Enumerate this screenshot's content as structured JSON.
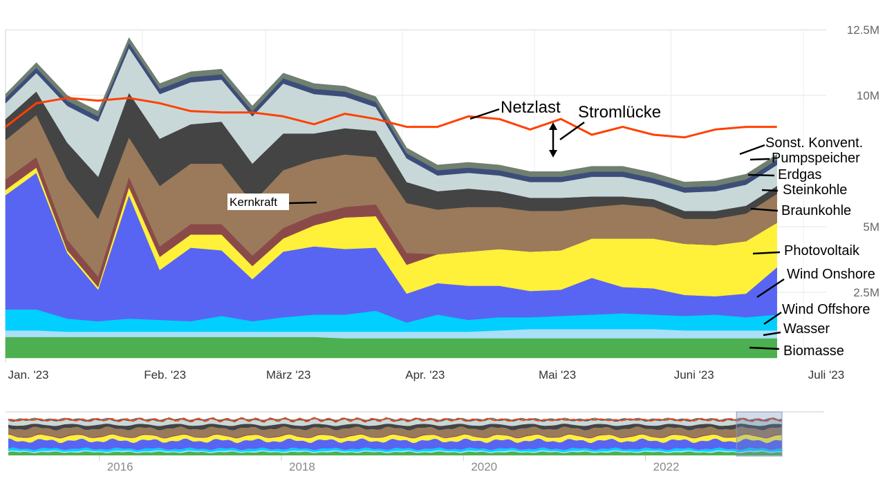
{
  "chart_data": {
    "type": "area",
    "stacked": true,
    "title": "",
    "xlabel": "",
    "ylabel": "",
    "ylim": [
      0,
      12500000
    ],
    "y_ticks": [
      {
        "value": 2500000,
        "label": "2.5M"
      },
      {
        "value": 5000000,
        "label": "5M"
      },
      {
        "value": 10000000,
        "label": "10M"
      },
      {
        "value": 12500000,
        "label": "12.5M"
      }
    ],
    "x_ticks": [
      {
        "value": "2023-01-01",
        "label": "Jan. '23"
      },
      {
        "value": "2023-02-01",
        "label": "Feb. '23"
      },
      {
        "value": "2023-03-01",
        "label": "März '23"
      },
      {
        "value": "2023-04-01",
        "label": "Apr. '23"
      },
      {
        "value": "2023-05-01",
        "label": "Mai '23"
      },
      {
        "value": "2023-06-01",
        "label": "Juni '23"
      },
      {
        "value": "2023-07-01",
        "label": "Juli '23"
      }
    ],
    "x_range": [
      "2023-01-01",
      "2023-07-01"
    ],
    "grid": true,
    "x": [
      "2023-01-01",
      "2023-01-08",
      "2023-01-15",
      "2023-01-22",
      "2023-01-29",
      "2023-02-05",
      "2023-02-12",
      "2023-02-19",
      "2023-02-26",
      "2023-03-05",
      "2023-03-12",
      "2023-03-19",
      "2023-03-26",
      "2023-04-02",
      "2023-04-09",
      "2023-04-16",
      "2023-04-23",
      "2023-04-30",
      "2023-05-07",
      "2023-05-14",
      "2023-05-21",
      "2023-05-28",
      "2023-06-04",
      "2023-06-11",
      "2023-06-18",
      "2023-06-25"
    ],
    "series": [
      {
        "name": "Biomasse",
        "color": "#4caf50",
        "values": [
          800000,
          800000,
          800000,
          800000,
          800000,
          800000,
          800000,
          800000,
          800000,
          800000,
          800000,
          750000,
          750000,
          750000,
          750000,
          750000,
          750000,
          750000,
          750000,
          750000,
          750000,
          750000,
          750000,
          750000,
          750000,
          750000
        ]
      },
      {
        "name": "Wasser",
        "color": "#a9dff7",
        "values": [
          250000,
          250000,
          200000,
          200000,
          200000,
          200000,
          200000,
          200000,
          200000,
          200000,
          200000,
          250000,
          250000,
          250000,
          250000,
          250000,
          300000,
          350000,
          350000,
          350000,
          350000,
          350000,
          300000,
          300000,
          300000,
          300000
        ]
      },
      {
        "name": "Wind Offshore",
        "color": "#00cfff",
        "values": [
          800000,
          800000,
          500000,
          400000,
          500000,
          450000,
          400000,
          600000,
          400000,
          550000,
          650000,
          650000,
          800000,
          350000,
          650000,
          450000,
          500000,
          450000,
          500000,
          550000,
          600000,
          550000,
          550000,
          600000,
          500000,
          600000
        ]
      },
      {
        "name": "Wind Onshore",
        "color": "#5865f2",
        "values": [
          4350000,
          5200000,
          2500000,
          1200000,
          4700000,
          1900000,
          2800000,
          2500000,
          1600000,
          2500000,
          2600000,
          2500000,
          2400000,
          1100000,
          1200000,
          1300000,
          1200000,
          1000000,
          1000000,
          1400000,
          1000000,
          1000000,
          800000,
          700000,
          900000,
          1800000
        ]
      },
      {
        "name": "Photovoltaik",
        "color": "#fff03a",
        "values": [
          200000,
          200000,
          100000,
          100000,
          300000,
          500000,
          500000,
          600000,
          500000,
          500000,
          800000,
          1200000,
          1200000,
          1100000,
          1100000,
          1300000,
          1400000,
          1500000,
          1500000,
          1500000,
          1850000,
          1900000,
          1950000,
          1950000,
          2000000,
          1700000
        ]
      },
      {
        "name": "Kernkraft",
        "color": "#8b4a4a",
        "values": [
          400000,
          400000,
          400000,
          400000,
          400000,
          400000,
          400000,
          400000,
          400000,
          400000,
          400000,
          400000,
          450000,
          450000,
          0,
          0,
          0,
          0,
          0,
          0,
          0,
          0,
          0,
          0,
          0,
          0
        ]
      },
      {
        "name": "Braunkohle",
        "color": "#9a7a5a",
        "values": [
          1500000,
          1600000,
          2300000,
          2200000,
          1500000,
          2300000,
          2300000,
          2300000,
          2000000,
          2200000,
          2100000,
          2000000,
          1800000,
          1900000,
          1700000,
          1700000,
          1600000,
          1550000,
          1500000,
          1200000,
          1300000,
          1200000,
          950000,
          1000000,
          1050000,
          1100000
        ]
      },
      {
        "name": "Steinkohle",
        "color": "#444444",
        "values": [
          800000,
          900000,
          1400000,
          1600000,
          1700000,
          1800000,
          1500000,
          1600000,
          1500000,
          1400000,
          1000000,
          1000000,
          1000000,
          800000,
          700000,
          700000,
          600000,
          500000,
          500000,
          400000,
          300000,
          300000,
          300000,
          300000,
          300000,
          300000
        ]
      },
      {
        "name": "Erdgas",
        "color": "#c8d8d8",
        "values": [
          600000,
          700000,
          1400000,
          2100000,
          1700000,
          1700000,
          1600000,
          1600000,
          1800000,
          1900000,
          1500000,
          1200000,
          900000,
          900000,
          600000,
          600000,
          600000,
          600000,
          600000,
          750000,
          750000,
          600000,
          700000,
          750000,
          800000,
          800000
        ]
      },
      {
        "name": "Pumpspeicher",
        "color": "#3d4d7a",
        "values": [
          200000,
          200000,
          200000,
          200000,
          200000,
          200000,
          200000,
          200000,
          200000,
          200000,
          200000,
          200000,
          200000,
          200000,
          200000,
          200000,
          200000,
          200000,
          200000,
          200000,
          200000,
          200000,
          200000,
          200000,
          200000,
          200000
        ]
      },
      {
        "name": "Sonst. Konvent.",
        "color": "#6f7f70",
        "values": [
          150000,
          200000,
          200000,
          200000,
          200000,
          200000,
          200000,
          200000,
          200000,
          200000,
          200000,
          200000,
          200000,
          200000,
          200000,
          200000,
          200000,
          200000,
          200000,
          200000,
          200000,
          200000,
          200000,
          200000,
          200000,
          200000
        ]
      }
    ],
    "line_series": [
      {
        "name": "Netzlast",
        "color": "#ff4000",
        "values": [
          8800000,
          9700000,
          9900000,
          9800000,
          9900000,
          9700000,
          9400000,
          9350000,
          9350000,
          9200000,
          8900000,
          9300000,
          9100000,
          8800000,
          8800000,
          9200000,
          9100000,
          8700000,
          9100000,
          8500000,
          8800000,
          8500000,
          8400000,
          8700000,
          8800000,
          8800000
        ]
      }
    ],
    "annotations": {
      "netzlast": "Netzlast",
      "stromluecke": "Stromlücke",
      "kernkraft": "Kernkraft"
    },
    "legend_labels": [
      "Sonst. Konvent.",
      "Pumpspeicher",
      "Erdgas",
      "Steinkohle",
      "Braunkohle",
      "Photovoltaik",
      "Wind Onshore",
      "Wind Offshore",
      "Wasser",
      "Biomasse"
    ],
    "navigator": {
      "x_ticks": [
        {
          "value": 2016,
          "label": "2016"
        },
        {
          "value": 2018,
          "label": "2018"
        },
        {
          "value": 2020,
          "label": "2020"
        },
        {
          "value": 2022,
          "label": "2022"
        }
      ],
      "x_range": [
        2015.0,
        2023.5
      ],
      "selection": [
        2023.0,
        2023.5
      ]
    }
  }
}
